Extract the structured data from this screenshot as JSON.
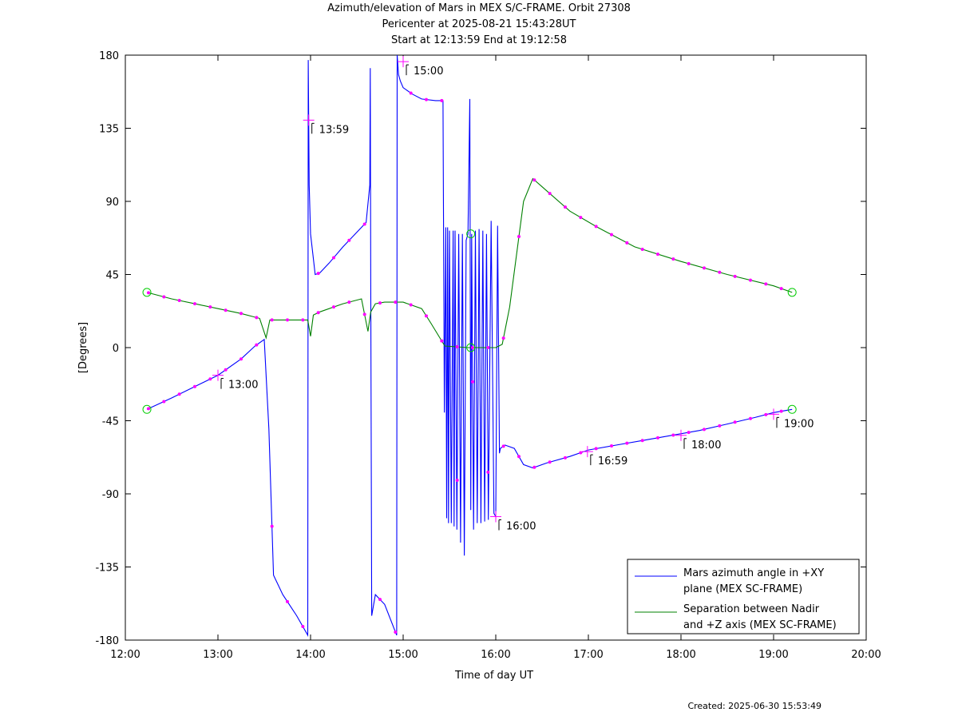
{
  "header": {
    "title1": "Azimuth/elevation of Mars in MEX S/C-FRAME.  Orbit 27308",
    "title2": "Pericenter at 2025-08-21 15:43:28UT",
    "title3": "Start at 12:13:59 End at 19:12:58"
  },
  "footer": {
    "created": "Created: 2025-06-30 15:53:49"
  },
  "colors": {
    "azimuth": "#0000ff",
    "separation": "#008000",
    "marker": "#ff00ff",
    "endpoint": "#00cc00"
  },
  "chart_data": {
    "type": "line",
    "title": "Azimuth/elevation of Mars in MEX S/C-FRAME.  Orbit 27308",
    "subtitle": "Pericenter at 2025-08-21 15:43:28UT / Start at 12:13:59 End at 19:12:58",
    "xlabel": "Time of day UT",
    "ylabel": "[Degrees]",
    "xlim": [
      12,
      20
    ],
    "ylim": [
      -180,
      180
    ],
    "xticks": [
      12,
      13,
      14,
      15,
      16,
      17,
      18,
      19,
      20
    ],
    "xtick_labels": [
      "12:00",
      "13:00",
      "14:00",
      "15:00",
      "16:00",
      "17:00",
      "18:00",
      "19:00",
      "20:00"
    ],
    "yticks": [
      180,
      135,
      90,
      45,
      0,
      -45,
      -90,
      -135,
      -180
    ],
    "ytick_labels": [
      "180",
      "135",
      "90",
      "45",
      "0",
      "-45",
      "-90",
      "-135",
      "-180"
    ],
    "legend_position": "bottom-right",
    "grid": false,
    "series": [
      {
        "name": "Mars azimuth angle in +XY plane (MEX SC-FRAME)",
        "legend_lines": [
          "Mars azimuth angle in +XY",
          "plane (MEX SC-FRAME)"
        ],
        "x": [
          12.233,
          12.5,
          12.75,
          13.0,
          13.25,
          13.4,
          13.5,
          13.55,
          13.6,
          13.7,
          13.85,
          13.97,
          13.975,
          13.985,
          14.0,
          14.05,
          14.1,
          14.2,
          14.35,
          14.5,
          14.6,
          14.64,
          14.645,
          14.65,
          14.66,
          14.7,
          14.8,
          14.93,
          14.935,
          14.95,
          14.97,
          15.0,
          15.1,
          15.2,
          15.35,
          15.43,
          15.445,
          15.46,
          15.47,
          15.48,
          15.49,
          15.5,
          15.52,
          15.54,
          15.55,
          15.56,
          15.58,
          15.6,
          15.62,
          15.64,
          15.66,
          15.68,
          15.7,
          15.72,
          15.73,
          15.74,
          15.76,
          15.78,
          15.8,
          15.82,
          15.84,
          15.86,
          15.88,
          15.9,
          15.92,
          15.95,
          15.98,
          16.0,
          16.02,
          16.04,
          16.05,
          16.1,
          16.2,
          16.3,
          16.4,
          16.55,
          16.8,
          17.0,
          17.3,
          17.6,
          17.9,
          18.2,
          18.5,
          18.8,
          19.0,
          19.2
        ],
        "y": [
          -38,
          -31,
          -24,
          -17,
          -7,
          1,
          5,
          -50,
          -140,
          -152,
          -165,
          -177,
          177,
          100,
          70,
          45,
          46,
          52,
          62,
          71,
          77,
          100,
          172,
          40,
          -165,
          -152,
          -158,
          -177,
          180,
          168,
          164,
          160,
          156,
          153,
          152,
          152,
          -40,
          74,
          -105,
          74,
          -108,
          72,
          -108,
          72,
          -110,
          72,
          -112,
          70,
          -120,
          70,
          -128,
          66,
          70,
          153,
          -100,
          70,
          -112,
          72,
          -108,
          73,
          -108,
          72,
          -107,
          70,
          -106,
          78,
          -102,
          -104,
          75,
          -65,
          -62,
          -60,
          -62,
          -72,
          -74,
          -71,
          -67,
          -63,
          -60,
          -57,
          -54,
          -51,
          -47,
          -43,
          -40,
          -38
        ]
      },
      {
        "name": "Separation between Nadir and +Z axis (MEX SC-FRAME)",
        "legend_lines": [
          "Separation between Nadir",
          "and +Z axis (MEX SC-FRAME)"
        ],
        "x": [
          12.233,
          12.5,
          12.75,
          13.0,
          13.25,
          13.45,
          13.52,
          13.56,
          13.6,
          13.8,
          13.97,
          14.0,
          14.03,
          14.1,
          14.35,
          14.55,
          14.62,
          14.65,
          14.7,
          14.8,
          15.0,
          15.2,
          15.3,
          15.45,
          15.7,
          16.0,
          16.07,
          16.15,
          16.3,
          16.4,
          16.5,
          16.8,
          17.1,
          17.5,
          18.0,
          18.5,
          19.0,
          19.2
        ],
        "y": [
          34,
          30,
          27,
          24,
          21,
          18,
          6,
          17,
          17,
          17,
          17,
          7,
          20,
          22,
          27,
          30,
          10,
          22,
          27,
          28,
          28,
          24,
          15,
          1,
          0,
          0,
          2,
          25,
          90,
          104,
          99,
          84,
          74,
          62,
          53,
          45,
          38,
          34
        ]
      }
    ],
    "annotations": [
      {
        "label": "13:00",
        "x": 13.0,
        "y": -17
      },
      {
        "label": "13:59",
        "x": 13.98,
        "y": 140
      },
      {
        "label": "15:00",
        "x": 15.0,
        "y": 176
      },
      {
        "label": "16:00",
        "x": 16.0,
        "y": -104
      },
      {
        "label": "16:59",
        "x": 16.99,
        "y": -64
      },
      {
        "label": "18:00",
        "x": 18.0,
        "y": -54
      },
      {
        "label": "19:00",
        "x": 19.0,
        "y": -41
      }
    ],
    "endpoint_markers": [
      {
        "x": 12.233,
        "y": 34
      },
      {
        "x": 12.233,
        "y": -38
      },
      {
        "x": 15.73,
        "y": 70
      },
      {
        "x": 15.73,
        "y": 0
      },
      {
        "x": 19.2,
        "y": 34
      },
      {
        "x": 19.2,
        "y": -38
      }
    ]
  }
}
